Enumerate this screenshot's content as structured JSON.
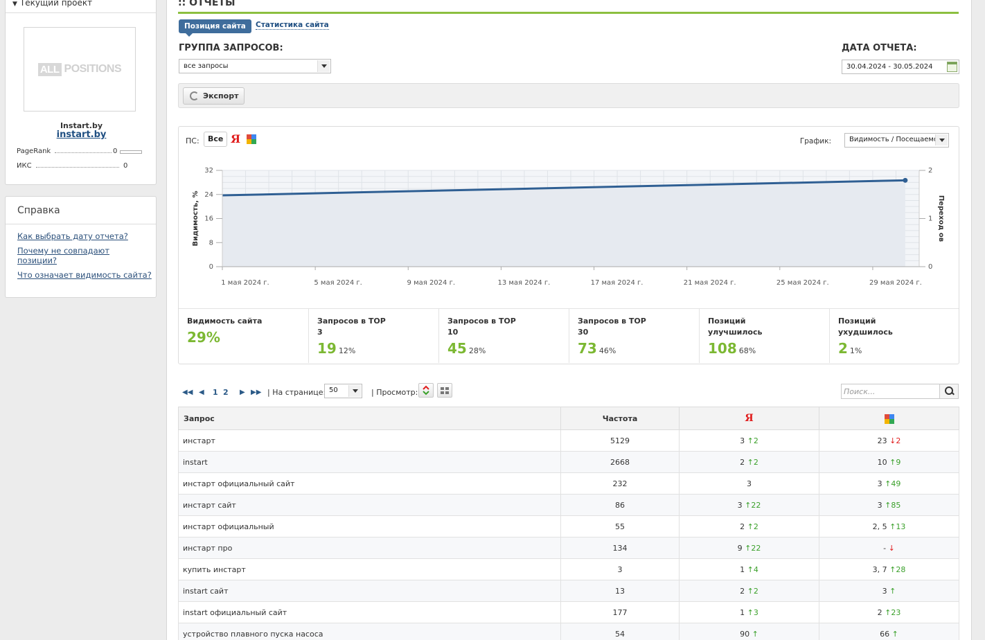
{
  "sidebar": {
    "project_header": "Текущий проект",
    "logo_all": "ALL",
    "logo_positions": "POSITIONS",
    "site_name": "Instart.by",
    "site_link": "instart.by",
    "metrics": [
      {
        "label": "PageRank",
        "value": "0"
      },
      {
        "label": "ИКС",
        "value": "0"
      }
    ],
    "help_title": "Справка",
    "help_links": [
      "Как выбрать дату отчета?",
      "Почему не совпадают позиции?",
      "Что означает видимость сайта?"
    ]
  },
  "main": {
    "title": ":: ОТЧЕТЫ",
    "tabs": {
      "active": "Позиция сайта",
      "other": "Статистика сайта"
    },
    "query_group_label": "ГРУППА ЗАПРОСОВ:",
    "query_group_value": "все запросы",
    "report_date_label": "ДАТА ОТЧЕТА:",
    "report_date_value": "30.04.2024 - 30.05.2024",
    "export_label": "Экспорт",
    "ps_label": "ПС:",
    "ps_all": "Все",
    "yandex_glyph": "Я",
    "graph_label": "График:",
    "graph_value": "Видимость / Посещаемо",
    "stats": [
      {
        "label": "Видимость сайта",
        "value": "29%",
        "pct": ""
      },
      {
        "label": "Запросов в TOP 3",
        "value": "19",
        "pct": "12%"
      },
      {
        "label": "Запросов в TOP 10",
        "value": "45",
        "pct": "28%"
      },
      {
        "label": "Запросов в TOP 30",
        "value": "73",
        "pct": "46%"
      },
      {
        "label": "Позиций улучшилось",
        "value": "108",
        "pct": "68%"
      },
      {
        "label": "Позиций ухудшилось",
        "value": "2",
        "pct": "1%"
      }
    ],
    "pager": {
      "pages": [
        "1",
        "2"
      ],
      "per_page_label": "| На странице:",
      "per_page_value": "50",
      "view_label": "| Просмотр:"
    },
    "search_placeholder": "Поиск...",
    "table": {
      "headers": {
        "query": "Запрос",
        "freq": "Частота"
      },
      "rows": [
        {
          "q": "инстарт",
          "f": "5129",
          "y": "3",
          "yd": "up",
          "yc": "2",
          "g": "23",
          "gd": "dn",
          "gc": "2"
        },
        {
          "q": "instart",
          "f": "2668",
          "y": "2",
          "yd": "up",
          "yc": "2",
          "g": "10",
          "gd": "up",
          "gc": "9"
        },
        {
          "q": "инстарт официальный сайт",
          "f": "232",
          "y": "3",
          "yd": "",
          "yc": "",
          "g": "3",
          "gd": "up",
          "gc": "49"
        },
        {
          "q": "инстарт сайт",
          "f": "86",
          "y": "3",
          "yd": "up",
          "yc": "22",
          "g": "3",
          "gd": "up",
          "gc": "85"
        },
        {
          "q": "инстарт официальный",
          "f": "55",
          "y": "2",
          "yd": "up",
          "yc": "2",
          "g": "2, 5",
          "gd": "up",
          "gc": "13"
        },
        {
          "q": "инстарт про",
          "f": "134",
          "y": "9",
          "yd": "up",
          "yc": "22",
          "g": "-",
          "gd": "dn",
          "gc": ""
        },
        {
          "q": "купить инстарт",
          "f": "3",
          "y": "1",
          "yd": "up",
          "yc": "4",
          "g": "3, 7",
          "gd": "up",
          "gc": "28"
        },
        {
          "q": "instart сайт",
          "f": "13",
          "y": "2",
          "yd": "up",
          "yc": "2",
          "g": "3",
          "gd": "up",
          "gc": ""
        },
        {
          "q": "instart официальный сайт",
          "f": "177",
          "y": "1",
          "yd": "up",
          "yc": "3",
          "g": "2",
          "gd": "up",
          "gc": "23"
        },
        {
          "q": "устройство плавного пуска насоса",
          "f": "54",
          "y": "90",
          "yd": "up",
          "yc": "",
          "g": "66",
          "gd": "up",
          "gc": ""
        }
      ]
    }
  },
  "chart_data": {
    "type": "area",
    "ylabel": "Видимость, %",
    "y2label": "Переход ов",
    "ylim": [
      0,
      32
    ],
    "yticks": [
      "0",
      "8",
      "16",
      "24",
      "32"
    ],
    "y2lim": [
      0,
      2
    ],
    "y2ticks": [
      "0",
      "1",
      "2"
    ],
    "xticks": [
      "1 мая 2024 г.",
      "5 мая 2024 г.",
      "9 мая 2024 г.",
      "13 мая 2024 г.",
      "17 мая 2024 г.",
      "21 мая 2024 г.",
      "25 мая 2024 г.",
      "29 мая 2024 г."
    ],
    "series": [
      {
        "points": [
          [
            0,
            23.7
          ],
          [
            29.4,
            28.7
          ]
        ]
      }
    ],
    "grid": true,
    "colors": {
      "line": "#2f5f93",
      "fill": "#e6eaf0"
    }
  },
  "colors": {
    "accent_green": "#8cbf3f",
    "tab_blue": "#3f6d9c",
    "up": "#3aa02a",
    "down": "#e01c1c"
  }
}
